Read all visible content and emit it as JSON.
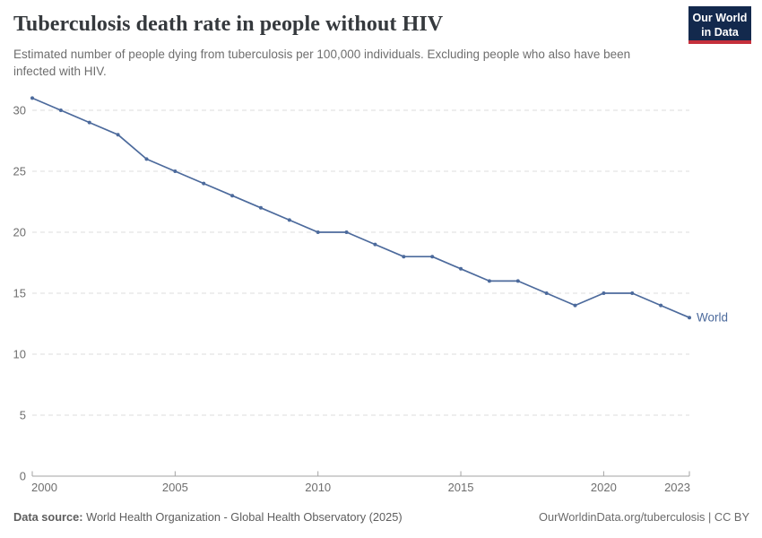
{
  "header": {
    "title": "Tuberculosis death rate in people without HIV",
    "subtitle": "Estimated number of people dying from tuberculosis per 100,000 individuals. Excluding people who also have been infected with HIV."
  },
  "logo": {
    "line1": "Our World",
    "line2": "in Data",
    "bg_color": "#13294d",
    "stripe_color": "#c5303c"
  },
  "chart_data": {
    "type": "line",
    "title": "Tuberculosis death rate in people without HIV",
    "x": [
      2000,
      2001,
      2002,
      2003,
      2004,
      2005,
      2006,
      2007,
      2008,
      2009,
      2010,
      2011,
      2012,
      2013,
      2014,
      2015,
      2016,
      2017,
      2018,
      2019,
      2020,
      2021,
      2022,
      2023
    ],
    "series": [
      {
        "name": "World",
        "color": "#4c6a9c",
        "values": [
          31,
          30,
          29,
          28,
          26,
          25,
          24,
          23,
          22,
          21,
          20,
          20,
          19,
          18,
          18,
          17,
          16,
          16,
          15,
          14,
          15,
          15,
          14,
          13
        ]
      }
    ],
    "xticks": [
      2000,
      2005,
      2010,
      2015,
      2020,
      2023
    ],
    "yticks": [
      0,
      5,
      10,
      15,
      20,
      25,
      30
    ],
    "xlim": [
      2000,
      2023
    ],
    "ylim": [
      0,
      31
    ],
    "xlabel": "",
    "ylabel": "",
    "grid": "dashed-horizontal",
    "legend": "end-of-line-label",
    "colors": {
      "gridline": "#dcdcdc",
      "axis": "#a3a3a3",
      "tick_label": "#6e6e6e",
      "line": "#4c6a9c",
      "series_label": "#4c6a9c"
    }
  },
  "footer": {
    "datasource_label": "Data source:",
    "datasource_text": "World Health Organization - Global Health Observatory (2025)",
    "right_text": "OurWorldinData.org/tuberculosis | CC BY"
  }
}
